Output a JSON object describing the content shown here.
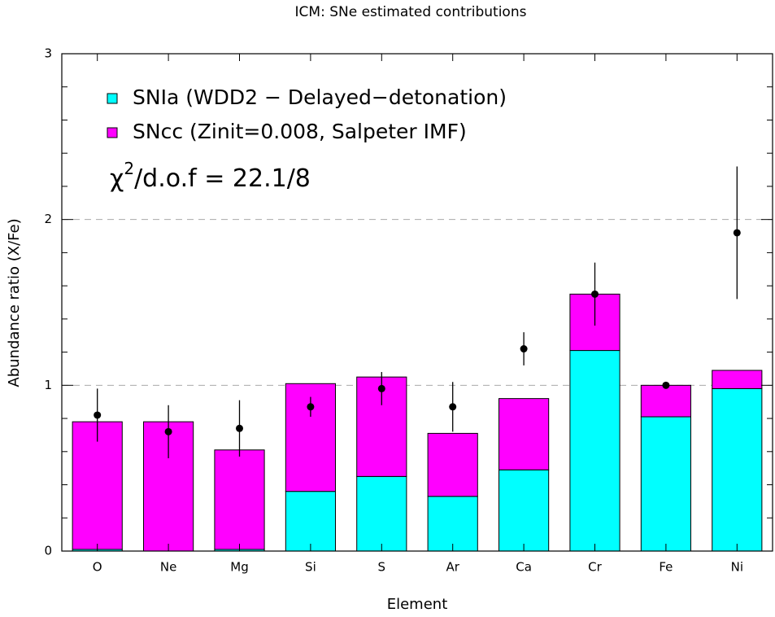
{
  "chart_data": {
    "type": "stacked_bar",
    "title": "ICM: SNe estimated contributions",
    "x_label": "Element",
    "y_label": "Abundance ratio (X/Fe)",
    "categories": [
      "O",
      "Ne",
      "Mg",
      "Si",
      "S",
      "Ar",
      "Ca",
      "Cr",
      "Fe",
      "Ni"
    ],
    "series": [
      {
        "name": "SNIa (WDD2 − Delayed−detonation)",
        "color": "#00ffff",
        "values": [
          0.01,
          0,
          0.01,
          0.36,
          0.45,
          0.33,
          0.49,
          1.21,
          0.81,
          0.98
        ]
      },
      {
        "name": "SNcc (Zinit=0.008, Salpeter IMF)",
        "color": "#ff00ff",
        "values": [
          0.77,
          0.78,
          0.6,
          0.65,
          0.6,
          0.38,
          0.43,
          0.34,
          0.19,
          0.11
        ]
      }
    ],
    "observed": {
      "values": [
        0.82,
        0.72,
        0.74,
        0.87,
        0.98,
        0.87,
        1.22,
        1.55,
        1.0,
        1.92
      ],
      "errors": [
        0.16,
        0.16,
        0.17,
        0.06,
        0.1,
        0.15,
        0.1,
        0.19,
        0.01,
        0.4
      ]
    },
    "annotation": {
      "symbol": "χ",
      "power": "2",
      "text": "/d.o.f = 22.1/8"
    },
    "ylim": [
      0,
      3
    ],
    "yticks": [
      0,
      1,
      2,
      3
    ],
    "minor_yticks": [
      0.2,
      0.4,
      0.6,
      0.8,
      1.2,
      1.4,
      1.6,
      1.8,
      2.2,
      2.4,
      2.6,
      2.8
    ],
    "grid": true
  }
}
